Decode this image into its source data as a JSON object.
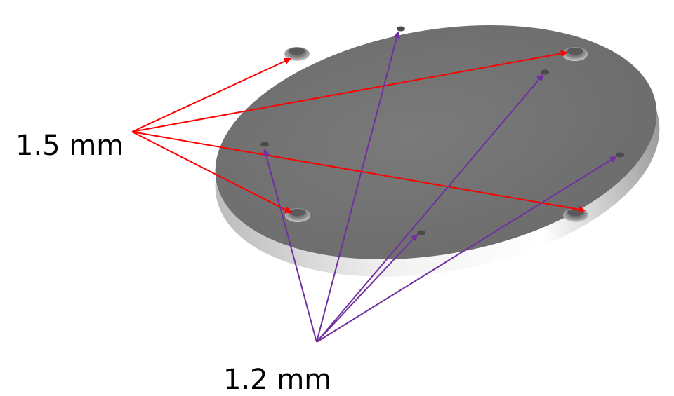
{
  "labels": {
    "large_holes": "1.5 mm",
    "small_holes": "1.2 mm"
  },
  "colors": {
    "large_arrow": "#ff0000",
    "small_arrow": "#7030a0",
    "plate_top": "#737373",
    "plate_edge": "#e6e6e6",
    "background": "#ffffff"
  },
  "holes": {
    "large_count": 4,
    "small_count": 5
  }
}
